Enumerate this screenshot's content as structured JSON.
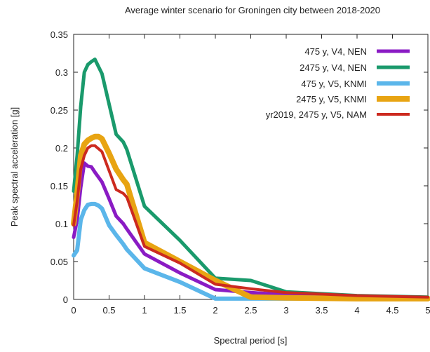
{
  "chart_data": {
    "type": "line",
    "title": "Average winter scenario for Groningen city between 2018-2020",
    "xlabel": "Spectral period [s]",
    "ylabel": "Peak spectral acceleration [g]",
    "xlim": [
      0,
      5
    ],
    "ylim": [
      0,
      0.35
    ],
    "x_ticks": [
      0,
      0.5,
      1,
      1.5,
      2,
      2.5,
      3,
      3.5,
      4,
      4.5,
      5
    ],
    "x_tick_labels": [
      "0",
      "0.5",
      "1",
      "1.5",
      "2",
      "2.5",
      "3",
      "3.5",
      "4",
      "4.5",
      "5"
    ],
    "y_ticks": [
      0,
      0.05,
      0.1,
      0.15,
      0.2,
      0.25,
      0.3,
      0.35
    ],
    "y_tick_labels": [
      "0",
      "0.05",
      "0.1",
      "0.15",
      "0.2",
      "0.25",
      "0.3",
      "0.35"
    ],
    "grid": false,
    "legend_position": "top-right",
    "series": [
      {
        "name": "475 y, V4, NEN",
        "color": "#8a1bc4",
        "x": [
          0,
          0.05,
          0.1,
          0.15,
          0.2,
          0.25,
          0.3,
          0.4,
          0.5,
          0.6,
          0.7,
          0.75,
          1,
          1.5,
          2,
          2.5,
          3,
          4,
          5
        ],
        "y": [
          0.082,
          0.105,
          0.148,
          0.18,
          0.176,
          0.175,
          0.168,
          0.155,
          0.133,
          0.11,
          0.1,
          0.093,
          0.06,
          0.035,
          0.013,
          0.009,
          0.006,
          0.004,
          0.002
        ]
      },
      {
        "name": "2475 y, V4, NEN",
        "color": "#1a9a6c",
        "x": [
          0,
          0.05,
          0.1,
          0.15,
          0.2,
          0.25,
          0.3,
          0.4,
          0.5,
          0.6,
          0.7,
          0.75,
          1,
          1.5,
          2,
          2.5,
          3,
          4,
          5
        ],
        "y": [
          0.143,
          0.19,
          0.255,
          0.3,
          0.31,
          0.314,
          0.317,
          0.298,
          0.258,
          0.218,
          0.208,
          0.198,
          0.123,
          0.078,
          0.028,
          0.025,
          0.01,
          0.005,
          0.003
        ]
      },
      {
        "name": "475 y, V5, KNMI",
        "color": "#5bb6ea",
        "x": [
          0,
          0.05,
          0.1,
          0.15,
          0.2,
          0.25,
          0.3,
          0.35,
          0.4,
          0.5,
          0.6,
          0.7,
          0.75,
          1,
          1.5,
          2,
          2.5,
          3,
          4,
          5
        ],
        "y": [
          0.058,
          0.065,
          0.105,
          0.118,
          0.125,
          0.126,
          0.126,
          0.124,
          0.12,
          0.098,
          0.085,
          0.073,
          0.066,
          0.041,
          0.023,
          0.001,
          0.001,
          0.001,
          0.001,
          0.001
        ]
      },
      {
        "name": "2475 y, V5, KNMI",
        "color": "#e8a412",
        "x": [
          0,
          0.05,
          0.1,
          0.15,
          0.2,
          0.25,
          0.3,
          0.35,
          0.4,
          0.5,
          0.6,
          0.7,
          0.75,
          1,
          1.5,
          2,
          2.5,
          3,
          4,
          5
        ],
        "y": [
          0.1,
          0.14,
          0.19,
          0.205,
          0.21,
          0.213,
          0.215,
          0.215,
          0.212,
          0.193,
          0.172,
          0.158,
          0.152,
          0.075,
          0.05,
          0.025,
          0.003,
          0.002,
          0.001,
          0.001
        ]
      },
      {
        "name": "yr2019, 2475 y, V5, NAM",
        "color": "#cc2a1f",
        "x": [
          0,
          0.05,
          0.1,
          0.15,
          0.2,
          0.25,
          0.3,
          0.4,
          0.5,
          0.6,
          0.7,
          0.75,
          1,
          1.5,
          2,
          2.5,
          3,
          4,
          5
        ],
        "y": [
          0.098,
          0.13,
          0.172,
          0.19,
          0.2,
          0.203,
          0.203,
          0.195,
          0.17,
          0.145,
          0.14,
          0.135,
          0.07,
          0.048,
          0.02,
          0.014,
          0.009,
          0.005,
          0.003
        ]
      }
    ]
  }
}
